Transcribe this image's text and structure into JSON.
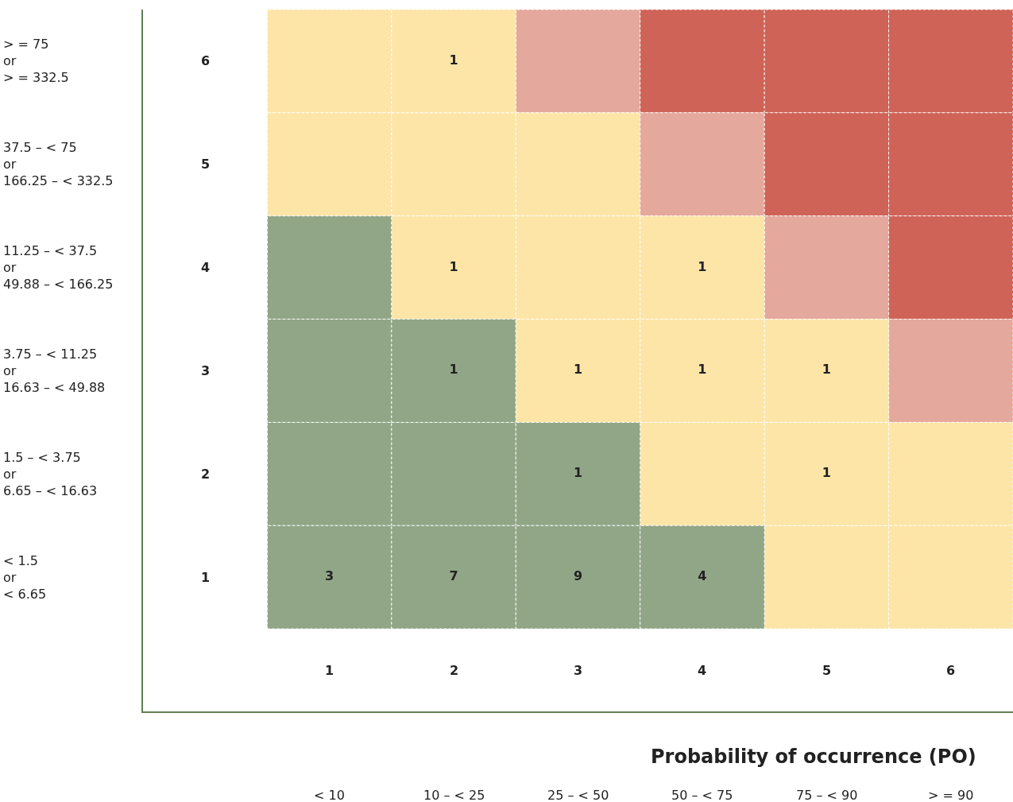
{
  "chart_data": {
    "type": "heatmap",
    "xlabel": "Probability of occurrence (PO)",
    "categories": [
      "1",
      "2",
      "3",
      "4",
      "5",
      "6"
    ],
    "y_categories": [
      "6",
      "5",
      "4",
      "3",
      "2",
      "1"
    ],
    "y2_categories": [
      "> = 75\nor\n> = 332.5",
      "37.5 – < 75\nor\n166.25 – < 332.5",
      "11.25 – < 37.5\nor\n49.88 – < 166.25",
      "3.75 – < 11.25\nor\n16.63 – < 49.88",
      "1.5 – < 3.75\nor\n6.65 – < 16.63",
      "< 1.5\nor\n< 6.65"
    ],
    "annotations": [
      "< 10",
      "10 – < 25",
      "25 – < 50",
      "50 – < 75",
      "75 – < 90",
      "> = 90"
    ],
    "cells": [
      [
        null,
        1,
        null,
        null,
        null,
        null
      ],
      [
        null,
        null,
        null,
        null,
        null,
        null
      ],
      [
        null,
        1,
        null,
        1,
        null,
        null
      ],
      [
        null,
        1,
        1,
        1,
        1,
        null
      ],
      [
        null,
        null,
        1,
        null,
        1,
        null
      ],
      [
        3,
        7,
        9,
        4,
        null,
        null
      ]
    ],
    "colors": [
      [
        "#fde5a7",
        "#fde5a7",
        "#e5a89c",
        "#cf6357",
        "#cf6357",
        "#cf6357"
      ],
      [
        "#fde5a7",
        "#fde5a7",
        "#fde5a7",
        "#e5a89c",
        "#cf6357",
        "#cf6357"
      ],
      [
        "#91a687",
        "#fde5a7",
        "#fde5a7",
        "#fde5a7",
        "#e5a89c",
        "#cf6357"
      ],
      [
        "#91a687",
        "#91a687",
        "#fde5a7",
        "#fde5a7",
        "#fde5a7",
        "#e5a89c"
      ],
      [
        "#91a687",
        "#91a687",
        "#91a687",
        "#fde5a7",
        "#fde5a7",
        "#fde5a7"
      ],
      [
        "#91a687",
        "#91a687",
        "#91a687",
        "#91a687",
        "#fde5a7",
        "#fde5a7"
      ]
    ],
    "data_labels": true
  }
}
